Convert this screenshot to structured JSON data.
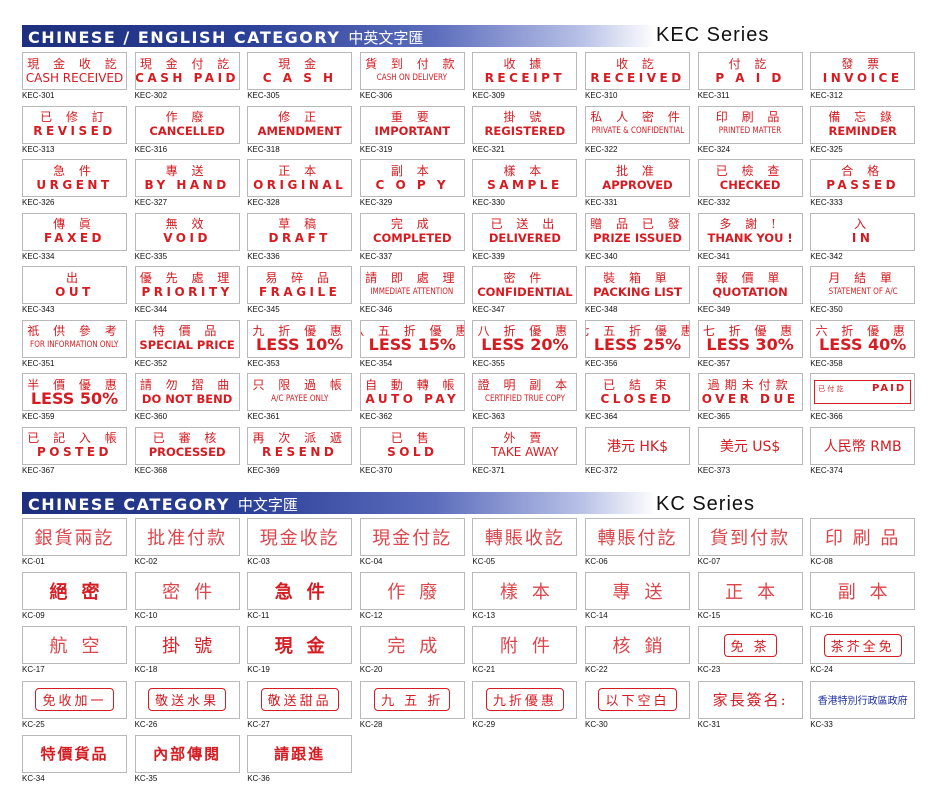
{
  "sections": {
    "kec": {
      "title": "CHINESE / ENGLISH CATEGORY",
      "title_zh": "中英文字匯",
      "series": "KEC Series"
    },
    "kc": {
      "title": "CHINESE CATEGORY",
      "title_zh": "中文字匯",
      "series": "KC Series"
    }
  },
  "kec_items": [
    {
      "code": "KEC-301",
      "zh": "現 金 收 訖",
      "en": "CASH RECEIVED",
      "en_style": "lt"
    },
    {
      "code": "KEC-302",
      "zh": "現 金 付 訖",
      "en": "CASH PAID",
      "en_style": "w"
    },
    {
      "code": "KEC-305",
      "zh": "現  金",
      "en": "C A S H",
      "en_style": "w"
    },
    {
      "code": "KEC-306",
      "zh": "貨 到 付 款",
      "en": "CASH ON DELIVERY",
      "en_style": "s"
    },
    {
      "code": "KEC-309",
      "zh": "收  據",
      "en": "RECEIPT",
      "en_style": "w"
    },
    {
      "code": "KEC-310",
      "zh": "收  訖",
      "en": "RECEIVED",
      "en_style": "w"
    },
    {
      "code": "KEC-311",
      "zh": "付  訖",
      "en": "P A I D",
      "en_style": "w"
    },
    {
      "code": "KEC-312",
      "zh": "發  票",
      "en": "INVOICE",
      "en_style": "w"
    },
    {
      "code": "KEC-313",
      "zh": "已 修 訂",
      "en": "REVISED",
      "en_style": "w"
    },
    {
      "code": "KEC-316",
      "zh": "作  廢",
      "en": "CANCELLED",
      "en_style": "n"
    },
    {
      "code": "KEC-318",
      "zh": "修  正",
      "en": "AMENDMENT",
      "en_style": "n"
    },
    {
      "code": "KEC-319",
      "zh": "重  要",
      "en": "IMPORTANT",
      "en_style": "n"
    },
    {
      "code": "KEC-321",
      "zh": "掛  號",
      "en": "REGISTERED",
      "en_style": "n"
    },
    {
      "code": "KEC-322",
      "zh": "私 人 密 件",
      "en": "PRIVATE & CONFIDENTIAL",
      "en_style": "s"
    },
    {
      "code": "KEC-324",
      "zh": "印  刷  品",
      "en": "PRINTED MATTER",
      "en_style": "s"
    },
    {
      "code": "KEC-325",
      "zh": "備 忘 錄",
      "en": "REMINDER",
      "en_style": "n"
    },
    {
      "code": "KEC-326",
      "zh": "急  件",
      "en": "URGENT",
      "en_style": "w"
    },
    {
      "code": "KEC-327",
      "zh": "專  送",
      "en": "BY HAND",
      "en_style": "w"
    },
    {
      "code": "KEC-328",
      "zh": "正  本",
      "en": "ORIGINAL",
      "en_style": "w"
    },
    {
      "code": "KEC-329",
      "zh": "副  本",
      "en": "C O P Y",
      "en_style": "w"
    },
    {
      "code": "KEC-330",
      "zh": "樣  本",
      "en": "SAMPLE",
      "en_style": "w"
    },
    {
      "code": "KEC-331",
      "zh": "批  准",
      "en": "APPROVED",
      "en_style": "n"
    },
    {
      "code": "KEC-332",
      "zh": "已 檢 查",
      "en": "CHECKED",
      "en_style": "n"
    },
    {
      "code": "KEC-333",
      "zh": "合  格",
      "en": "PASSED",
      "en_style": "w"
    },
    {
      "code": "KEC-334",
      "zh": "傳  眞",
      "en": "FAXED",
      "en_style": "w"
    },
    {
      "code": "KEC-335",
      "zh": "無  效",
      "en": "VOID",
      "en_style": "w"
    },
    {
      "code": "KEC-336",
      "zh": "草  稿",
      "en": "DRAFT",
      "en_style": "w"
    },
    {
      "code": "KEC-337",
      "zh": "完  成",
      "en": "COMPLETED",
      "en_style": "n"
    },
    {
      "code": "KEC-339",
      "zh": "已 送 出",
      "en": "DELIVERED",
      "en_style": "n"
    },
    {
      "code": "KEC-340",
      "zh": "贈 品 已 發",
      "en": "PRIZE ISSUED",
      "en_style": "n"
    },
    {
      "code": "KEC-341",
      "zh": "多 謝 !",
      "en": "THANK YOU !",
      "en_style": "n"
    },
    {
      "code": "KEC-342",
      "zh": "入",
      "en": "IN",
      "en_style": "w"
    },
    {
      "code": "KEC-343",
      "zh": "出",
      "en": "OUT",
      "en_style": "w"
    },
    {
      "code": "KEC-344",
      "zh": "優 先 處 理",
      "en": "PRIORITY",
      "en_style": "w"
    },
    {
      "code": "KEC-345",
      "zh": "易 碎 品",
      "en": "FRAGILE",
      "en_style": "w"
    },
    {
      "code": "KEC-346",
      "zh": "請 即 處 理",
      "en": "IMMEDIATE ATTENTION",
      "en_style": "s"
    },
    {
      "code": "KEC-347",
      "zh": "密  件",
      "en": "CONFIDENTIAL",
      "en_style": "n"
    },
    {
      "code": "KEC-348",
      "zh": "裝 箱 單",
      "en": "PACKING LIST",
      "en_style": "n"
    },
    {
      "code": "KEC-349",
      "zh": "報 價 單",
      "en": "QUOTATION",
      "en_style": "n"
    },
    {
      "code": "KEC-350",
      "zh": "月 結 單",
      "en": "STATEMENT OF A/C",
      "en_style": "s"
    },
    {
      "code": "KEC-351",
      "zh": "祇 供 參 考",
      "en": "FOR INFORMATION ONLY",
      "en_style": "s"
    },
    {
      "code": "KEC-352",
      "zh": "特  價  品",
      "en": "SPECIAL PRICE",
      "en_style": "n"
    },
    {
      "code": "KEC-353",
      "zh": "九 折 優 惠",
      "en": "LESS 10%",
      "en_style": "xl"
    },
    {
      "code": "KEC-354",
      "zh": "八 五 折 優 惠",
      "en": "LESS 15%",
      "en_style": "xl"
    },
    {
      "code": "KEC-355",
      "zh": "八 折 優 惠",
      "en": "LESS 20%",
      "en_style": "xl"
    },
    {
      "code": "KEC-356",
      "zh": "七 五 折 優 惠",
      "en": "LESS 25%",
      "en_style": "xl"
    },
    {
      "code": "KEC-357",
      "zh": "七 折 優 惠",
      "en": "LESS 30%",
      "en_style": "xl"
    },
    {
      "code": "KEC-358",
      "zh": "六 折 優 惠",
      "en": "LESS 40%",
      "en_style": "xl"
    },
    {
      "code": "KEC-359",
      "zh": "半 價 優 惠",
      "en": "LESS 50%",
      "en_style": "xl"
    },
    {
      "code": "KEC-360",
      "zh": "請 勿 摺 曲",
      "en": "DO NOT BEND",
      "en_style": "n"
    },
    {
      "code": "KEC-361",
      "zh": "只 限 過 帳",
      "en": "A/C PAYEE ONLY",
      "en_style": "s"
    },
    {
      "code": "KEC-362",
      "zh": "自 動 轉 帳",
      "en": "AUTO PAY",
      "en_style": "w"
    },
    {
      "code": "KEC-363",
      "zh": "證 明 副 本",
      "en": "CERTIFIED TRUE COPY",
      "en_style": "s"
    },
    {
      "code": "KEC-364",
      "zh": "已 結 束",
      "en": "CLOSED",
      "en_style": "w"
    },
    {
      "code": "KEC-365",
      "zh": "過期未付款",
      "en": "OVER DUE",
      "en_style": "w"
    },
    {
      "code": "KEC-366",
      "paid_left": "已 付 訖",
      "paid_right": "PAID"
    },
    {
      "code": "KEC-367",
      "zh": "已 記 入 帳",
      "en": "POSTED",
      "en_style": "w"
    },
    {
      "code": "KEC-368",
      "zh": "已 審 核",
      "en": "PROCESSED",
      "en_style": "n"
    },
    {
      "code": "KEC-369",
      "zh": "再 次 派 遞",
      "en": "RESEND",
      "en_style": "w"
    },
    {
      "code": "KEC-370",
      "zh": "已  售",
      "en": "SOLD",
      "en_style": "w"
    },
    {
      "code": "KEC-371",
      "zh": "外  賣",
      "en": "TAKE AWAY",
      "en_style": "lt"
    },
    {
      "code": "KEC-372",
      "solo": "港元 HK$"
    },
    {
      "code": "KEC-373",
      "solo": "美元 US$"
    },
    {
      "code": "KEC-374",
      "solo": "人民幣 RMB"
    }
  ],
  "kc_items": [
    {
      "code": "KC-01",
      "text": "銀貨兩訖",
      "style": "light"
    },
    {
      "code": "KC-02",
      "text": "批准付款",
      "style": "light"
    },
    {
      "code": "KC-03",
      "text": "現金收訖",
      "style": "light"
    },
    {
      "code": "KC-04",
      "text": "現金付訖",
      "style": "light"
    },
    {
      "code": "KC-05",
      "text": "轉賬收訖",
      "style": "light"
    },
    {
      "code": "KC-06",
      "text": "轉賬付訖",
      "style": "light"
    },
    {
      "code": "KC-07",
      "text": "貨到付款",
      "style": "light"
    },
    {
      "code": "KC-08",
      "text": "印 刷 品",
      "style": "light"
    },
    {
      "code": "KC-09",
      "text": "絕密",
      "style": "wide bold"
    },
    {
      "code": "KC-10",
      "text": "密件",
      "style": "wide light"
    },
    {
      "code": "KC-11",
      "text": "急件",
      "style": "wide bold"
    },
    {
      "code": "KC-12",
      "text": "作廢",
      "style": "wide light"
    },
    {
      "code": "KC-13",
      "text": "樣本",
      "style": "wide light"
    },
    {
      "code": "KC-14",
      "text": "專送",
      "style": "wide light"
    },
    {
      "code": "KC-15",
      "text": "正本",
      "style": "wide light"
    },
    {
      "code": "KC-16",
      "text": "副本",
      "style": "wide light"
    },
    {
      "code": "KC-17",
      "text": "航空",
      "style": "wide light"
    },
    {
      "code": "KC-18",
      "text": "掛號",
      "style": "wide"
    },
    {
      "code": "KC-19",
      "text": "現金",
      "style": "wide bold"
    },
    {
      "code": "KC-20",
      "text": "完成",
      "style": "wide light"
    },
    {
      "code": "KC-21",
      "text": "附件",
      "style": "wide light"
    },
    {
      "code": "KC-22",
      "text": "核銷",
      "style": "wide light"
    },
    {
      "code": "KC-23",
      "text": "免 茶",
      "style": "framed"
    },
    {
      "code": "KC-24",
      "text": "茶芥全免",
      "style": "framed"
    },
    {
      "code": "KC-25",
      "text": "免收加一",
      "style": "framed"
    },
    {
      "code": "KC-26",
      "text": "敬送水果",
      "style": "framed"
    },
    {
      "code": "KC-27",
      "text": "敬送甜品",
      "style": "framed"
    },
    {
      "code": "KC-28",
      "text": "九 五 折",
      "style": "framed"
    },
    {
      "code": "KC-29",
      "text": "九折優惠",
      "style": "framed"
    },
    {
      "code": "KC-30",
      "text": "以下空白",
      "style": "framed"
    },
    {
      "code": "KC-31",
      "text": "家長簽名:",
      "style": "sm"
    },
    {
      "code": "KC-33",
      "text": "香港特別行政區政府",
      "style": "xs"
    },
    {
      "code": "KC-34",
      "text": "特價貨品",
      "style": "sm bold"
    },
    {
      "code": "KC-35",
      "text": "內部傳閱",
      "style": "sm bold"
    },
    {
      "code": "KC-36",
      "text": "請跟進",
      "style": "sm bold"
    }
  ]
}
